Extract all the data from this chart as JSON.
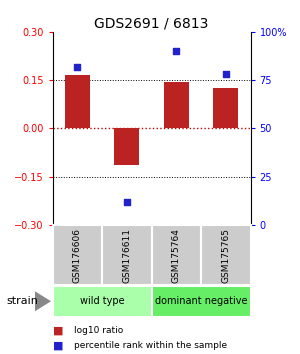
{
  "title": "GDS2691 / 6813",
  "samples": [
    "GSM176606",
    "GSM176611",
    "GSM175764",
    "GSM175765"
  ],
  "log10_ratio": [
    0.165,
    -0.115,
    0.145,
    0.125
  ],
  "percentile_rank": [
    82,
    12,
    90,
    78
  ],
  "groups": [
    {
      "label": "wild type",
      "span": [
        0,
        2
      ],
      "color": "#aaffaa"
    },
    {
      "label": "dominant negative",
      "span": [
        2,
        4
      ],
      "color": "#66ee66"
    }
  ],
  "ylim": [
    -0.3,
    0.3
  ],
  "y2lim": [
    0,
    100
  ],
  "yticks_left": [
    -0.3,
    -0.15,
    0.0,
    0.15,
    0.3
  ],
  "yticks_right": [
    0,
    25,
    50,
    75,
    100
  ],
  "bar_color": "#bb2222",
  "dot_color": "#2222cc",
  "hline0_color": "#cc0000",
  "hline_color": "#000000",
  "background_color": "#ffffff",
  "label_log10": "log10 ratio",
  "label_pct": "percentile rank within the sample",
  "strain_label": "strain",
  "sample_box_color": "#cccccc",
  "bar_width": 0.5
}
